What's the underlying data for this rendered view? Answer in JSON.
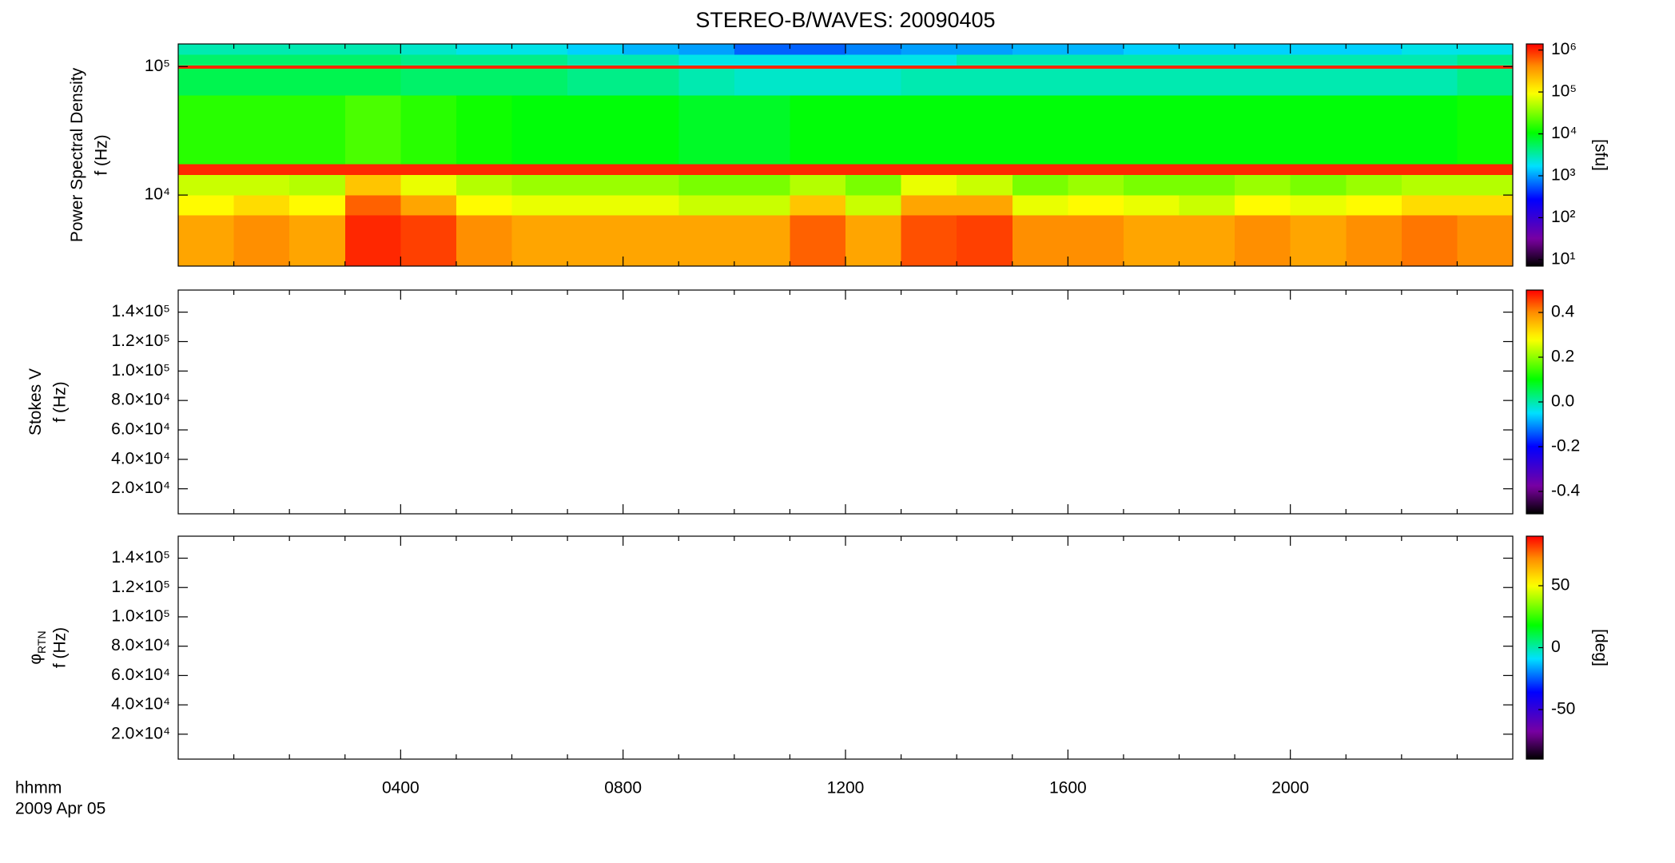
{
  "title": "STEREO-B/WAVES: 20090405",
  "xlabel": "hhmm",
  "date": "2009 Apr 05",
  "xlim": [
    0,
    24
  ],
  "xticks": [
    {
      "value": 4,
      "label": "0400"
    },
    {
      "value": 8,
      "label": "0800"
    },
    {
      "value": 12,
      "label": "1200"
    },
    {
      "value": 16,
      "label": "1600"
    },
    {
      "value": 20,
      "label": "2000"
    }
  ],
  "xminor": [
    1,
    2,
    3,
    5,
    6,
    7,
    9,
    10,
    11,
    13,
    14,
    15,
    17,
    18,
    19,
    21,
    22,
    23
  ],
  "colormap": "rainbow",
  "chart_data": [
    {
      "type": "heatmap",
      "ylabel": "Power Spectral Density",
      "ylabel2": "f (Hz)",
      "ylog": true,
      "ylim": [
        2800,
        150000
      ],
      "yticks": [
        {
          "value": 10000,
          "label": "10⁴"
        },
        {
          "value": 100000,
          "label": "10⁵"
        }
      ],
      "x_edges": [
        0,
        1,
        2,
        3,
        4,
        5,
        6,
        7,
        8,
        9,
        10,
        11,
        12,
        13,
        14,
        15,
        16,
        17,
        18,
        19,
        20,
        21,
        22,
        23,
        24
      ],
      "y_edges": [
        2800,
        7000,
        10000,
        14500,
        17500,
        60000,
        97000,
        103000,
        125000,
        150000
      ],
      "z": [
        [
          300000,
          400000,
          300000,
          1000000,
          800000,
          400000,
          300000,
          300000,
          300000,
          300000,
          300000,
          600000,
          300000,
          700000,
          800000,
          400000,
          400000,
          300000,
          300000,
          400000,
          300000,
          400000,
          500000,
          400000
        ],
        [
          100000,
          150000,
          100000,
          600000,
          300000,
          100000,
          80000,
          80000,
          80000,
          60000,
          60000,
          200000,
          60000,
          300000,
          300000,
          80000,
          100000,
          80000,
          60000,
          100000,
          80000,
          100000,
          150000,
          150000
        ],
        [
          60000,
          60000,
          50000,
          200000,
          80000,
          50000,
          40000,
          40000,
          40000,
          30000,
          30000,
          50000,
          30000,
          80000,
          60000,
          30000,
          40000,
          30000,
          30000,
          40000,
          30000,
          40000,
          50000,
          50000
        ],
        [
          1000000,
          1000000,
          1000000,
          1000000,
          1000000,
          1000000,
          1000000,
          1000000,
          1000000,
          1000000,
          1000000,
          1000000,
          1000000,
          1000000,
          1000000,
          1000000,
          1000000,
          1000000,
          1000000,
          1000000,
          1000000,
          1000000,
          1000000,
          1000000
        ],
        [
          15000,
          15000,
          15000,
          20000,
          15000,
          12000,
          10000,
          10000,
          10000,
          8000,
          8000,
          10000,
          10000,
          10000,
          10000,
          10000,
          10000,
          10000,
          10000,
          10000,
          10000,
          10000,
          10000,
          12000
        ],
        [
          6000,
          6000,
          6000,
          6000,
          5000,
          5000,
          5000,
          4000,
          4000,
          3000,
          2500,
          2500,
          2500,
          3000,
          3000,
          3000,
          3000,
          3000,
          3000,
          3000,
          3000,
          3000,
          3000,
          4000
        ],
        [
          1000000,
          1000000,
          1000000,
          1000000,
          1000000,
          1000000,
          1000000,
          1000000,
          1000000,
          1000000,
          1000000,
          1000000,
          1000000,
          1000000,
          1000000,
          1000000,
          1000000,
          1000000,
          1000000,
          1000000,
          1000000,
          1000000,
          1000000,
          1000000
        ],
        [
          5000,
          5000,
          5000,
          5000,
          4000,
          4000,
          4000,
          3000,
          3000,
          2000,
          2000,
          2000,
          2000,
          2000,
          3000,
          3000,
          3000,
          3000,
          3000,
          3000,
          3000,
          3000,
          3000,
          4000
        ],
        [
          3000,
          3000,
          3000,
          3000,
          2500,
          2000,
          2000,
          1500,
          1200,
          1000,
          600,
          600,
          800,
          1000,
          1000,
          1200,
          1200,
          1500,
          1500,
          1500,
          1500,
          1500,
          2000,
          2000
        ]
      ],
      "colorbar": {
        "log": true,
        "lim": [
          7,
          1400000
        ],
        "label": "[sfu]",
        "ticks": [
          {
            "value": 10,
            "label": "10¹"
          },
          {
            "value": 100,
            "label": "10²"
          },
          {
            "value": 1000,
            "label": "10³"
          },
          {
            "value": 10000,
            "label": "10⁴"
          },
          {
            "value": 100000,
            "label": "10⁵"
          },
          {
            "value": 1000000,
            "label": "10⁶"
          }
        ]
      }
    },
    {
      "type": "heatmap",
      "ylabel": "Stokes V",
      "ylabel2": "f (Hz)",
      "ylim": [
        3000,
        155000
      ],
      "yticks": [
        {
          "value": 20000,
          "label": "2.0×10⁴"
        },
        {
          "value": 40000,
          "label": "4.0×10⁴"
        },
        {
          "value": 60000,
          "label": "6.0×10⁴"
        },
        {
          "value": 80000,
          "label": "8.0×10⁴"
        },
        {
          "value": 100000,
          "label": "1.0×10⁵"
        },
        {
          "value": 120000,
          "label": "1.2×10⁵"
        },
        {
          "value": 140000,
          "label": "1.4×10⁵"
        }
      ],
      "colorbar": {
        "lim": [
          -0.5,
          0.5
        ],
        "ticks": [
          0.4,
          0.2,
          {
            "value": 0,
            "label": "0.0"
          },
          -0.2,
          -0.4
        ]
      }
    },
    {
      "type": "heatmap",
      "ylabel": "φ",
      "ylabel_sub": "RTN",
      "ylabel2": "f (Hz)",
      "ylim": [
        3000,
        155000
      ],
      "yticks": [
        {
          "value": 20000,
          "label": "2.0×10⁴"
        },
        {
          "value": 40000,
          "label": "4.0×10⁴"
        },
        {
          "value": 60000,
          "label": "6.0×10⁴"
        },
        {
          "value": 80000,
          "label": "8.0×10⁴"
        },
        {
          "value": 100000,
          "label": "1.0×10⁵"
        },
        {
          "value": 120000,
          "label": "1.2×10⁵"
        },
        {
          "value": 140000,
          "label": "1.4×10⁵"
        }
      ],
      "colorbar": {
        "lim": [
          -90,
          90
        ],
        "label": "[deg]",
        "ticks": [
          50,
          0,
          -50
        ]
      }
    }
  ]
}
